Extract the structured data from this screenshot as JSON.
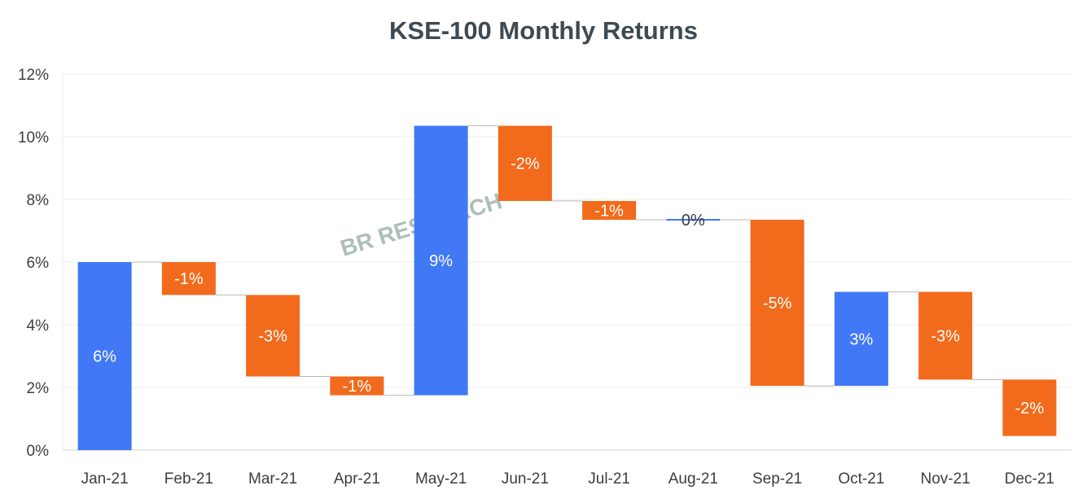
{
  "chart_data": {
    "type": "waterfall",
    "title": "KSE-100 Monthly Returns",
    "watermark": "BR RESEARCH",
    "categories": [
      "Jan-21",
      "Feb-21",
      "Mar-21",
      "Apr-21",
      "May-21",
      "Jun-21",
      "Jul-21",
      "Aug-21",
      "Sep-21",
      "Oct-21",
      "Nov-21",
      "Dec-21"
    ],
    "values": [
      6.0,
      -1.05,
      -2.6,
      -0.6,
      8.6,
      -2.4,
      -0.6,
      0.0,
      -5.3,
      3.0,
      -2.8,
      -1.8
    ],
    "data_labels": [
      "6%",
      "-1%",
      "-3%",
      "-1%",
      "9%",
      "-2%",
      "-1%",
      "0%",
      "-5%",
      "3%",
      "-3%",
      "-2%"
    ],
    "ylim": [
      0,
      12
    ],
    "yticks": [
      0,
      2,
      4,
      6,
      8,
      10,
      12
    ],
    "ytick_labels": [
      "0%",
      "2%",
      "4%",
      "6%",
      "8%",
      "10%",
      "12%"
    ],
    "xlabel": "",
    "ylabel": "",
    "grid": true,
    "colors": {
      "increase": "#4178f5",
      "decrease": "#f26a1b",
      "connector": "#b8b8b8",
      "grid": "#ececec",
      "text": "#3d3d3d"
    }
  }
}
